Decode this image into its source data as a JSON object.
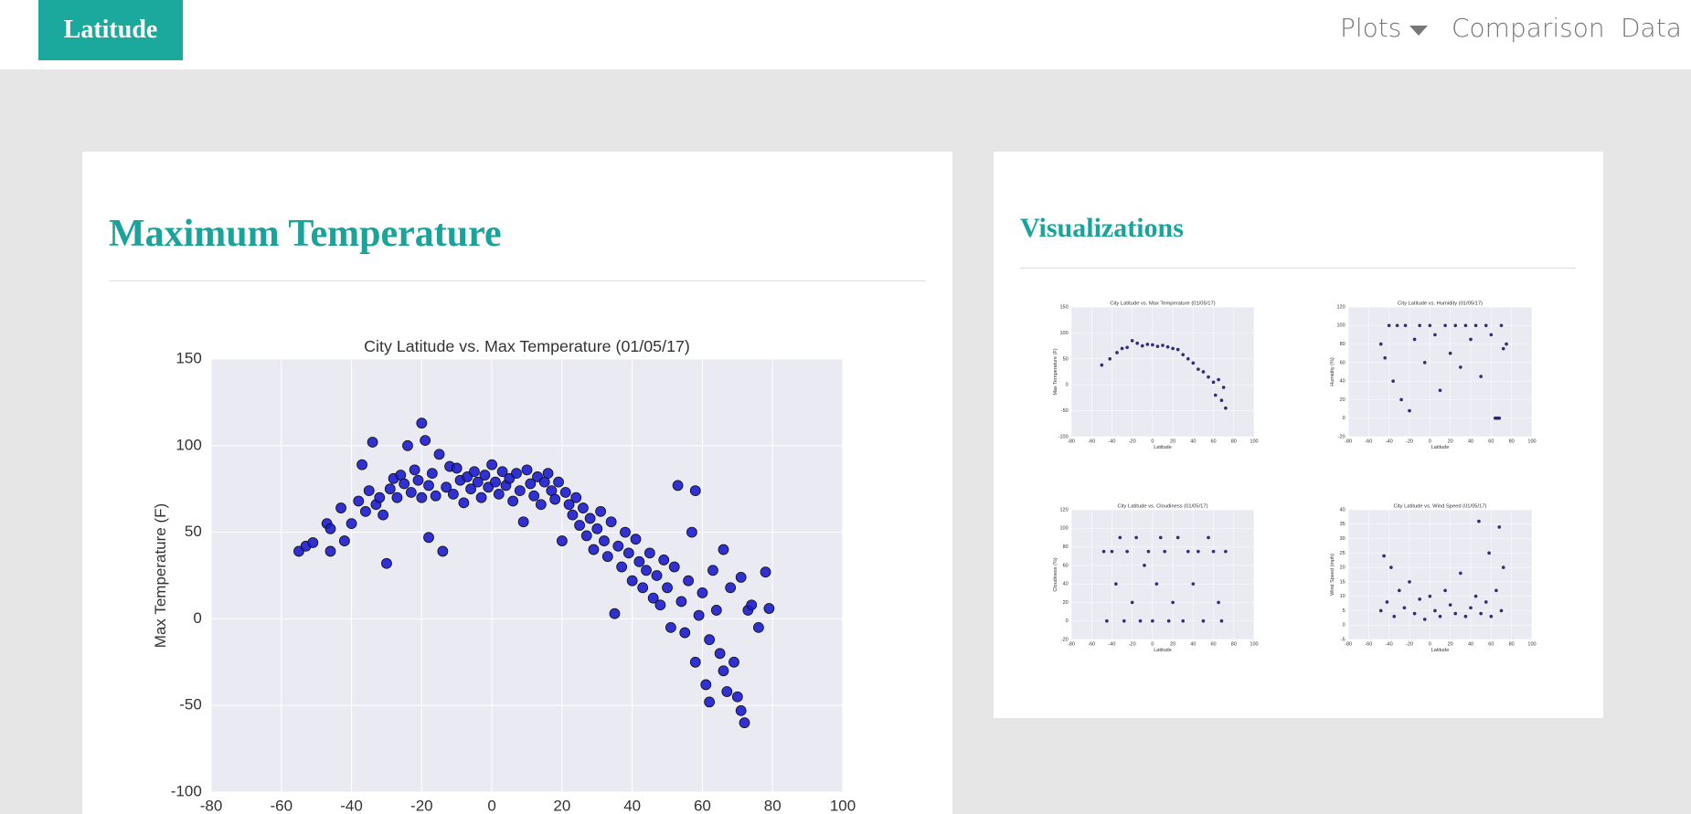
{
  "nav": {
    "brand": "Latitude",
    "items": [
      "Plots",
      "Comparison",
      "Data"
    ]
  },
  "main": {
    "title": "Maximum Temperature"
  },
  "sidebar": {
    "title": "Visualizations"
  },
  "chart_data": [
    {
      "type": "scatter",
      "title": "City Latitude vs. Max Temperature (01/05/17)",
      "y_label": "Max Temperature (F)",
      "color": "#1c1ccf",
      "grid": true,
      "xlim": [
        -80,
        100
      ],
      "xticks": [
        -80,
        -60,
        -40,
        -20,
        0,
        20,
        40,
        60,
        80,
        100
      ],
      "ylim": [
        -100,
        150
      ],
      "yticks": [
        -100,
        -50,
        0,
        50,
        100,
        150
      ],
      "x": [
        -55,
        -53,
        -51,
        -47,
        -46,
        -46,
        -43,
        -42,
        -40,
        -38,
        -37,
        -36,
        -35,
        -34,
        -33,
        -32,
        -31,
        -30,
        -29,
        -28,
        -27,
        -26,
        -25,
        -24,
        -23,
        -22,
        -21,
        -20,
        -20,
        -19,
        -18,
        -18,
        -17,
        -16,
        -15,
        -14,
        -13,
        -12,
        -11,
        -10,
        -9,
        -8,
        -7,
        -6,
        -5,
        -4,
        -3,
        -2,
        -1,
        0,
        1,
        2,
        3,
        4,
        5,
        6,
        7,
        8,
        9,
        10,
        11,
        12,
        13,
        14,
        15,
        16,
        17,
        18,
        19,
        20,
        21,
        22,
        23,
        24,
        25,
        26,
        27,
        28,
        29,
        30,
        31,
        32,
        33,
        34,
        35,
        36,
        37,
        38,
        39,
        40,
        41,
        42,
        43,
        44,
        45,
        46,
        47,
        48,
        49,
        50,
        51,
        52,
        53,
        54,
        55,
        56,
        57,
        58,
        59,
        60,
        61,
        62,
        63,
        64,
        65,
        66,
        67,
        68,
        69,
        70,
        71,
        72,
        73,
        74,
        76,
        78,
        79,
        71,
        66,
        62,
        58
      ],
      "values": [
        39,
        42,
        44,
        55,
        52,
        39,
        64,
        45,
        55,
        68,
        89,
        62,
        74,
        102,
        66,
        70,
        60,
        32,
        75,
        81,
        70,
        83,
        78,
        100,
        73,
        86,
        80,
        113,
        70,
        103,
        47,
        77,
        84,
        71,
        95,
        39,
        76,
        88,
        72,
        87,
        80,
        67,
        82,
        75,
        85,
        79,
        70,
        83,
        76,
        89,
        79,
        72,
        85,
        77,
        81,
        68,
        84,
        74,
        56,
        86,
        78,
        71,
        82,
        66,
        79,
        84,
        74,
        69,
        79,
        45,
        73,
        66,
        60,
        70,
        54,
        64,
        48,
        58,
        40,
        52,
        62,
        45,
        36,
        56,
        3,
        42,
        30,
        50,
        38,
        22,
        46,
        33,
        18,
        28,
        38,
        12,
        25,
        8,
        34,
        18,
        -5,
        30,
        77,
        10,
        -8,
        22,
        50,
        74,
        2,
        15,
        -38,
        -48,
        28,
        5,
        -20,
        40,
        -42,
        18,
        -25,
        -45,
        24,
        -60,
        5,
        8,
        -5,
        27,
        6,
        -53,
        -30,
        -12,
        -25
      ]
    },
    {
      "type": "scatter",
      "title": "City Latitude vs. Max Temperature (01/05/17)",
      "x_label": "Latitude",
      "y_label": "Max Temperature (F)",
      "color": "#1b1b7a",
      "grid": true,
      "xlim": [
        -80,
        100
      ],
      "xticks": [
        -80,
        -60,
        -40,
        -20,
        0,
        20,
        40,
        60,
        80,
        100
      ],
      "ylim": [
        -100,
        150
      ],
      "yticks": [
        -100,
        -50,
        0,
        50,
        100,
        150
      ],
      "x": [
        -50,
        -42,
        -35,
        -30,
        -25,
        -20,
        -15,
        -10,
        -5,
        0,
        5,
        10,
        15,
        20,
        25,
        30,
        35,
        40,
        45,
        50,
        55,
        60,
        62,
        65,
        68,
        70,
        72
      ],
      "values": [
        38,
        50,
        62,
        70,
        72,
        85,
        80,
        75,
        78,
        77,
        74,
        76,
        73,
        70,
        68,
        58,
        50,
        42,
        30,
        25,
        15,
        5,
        -20,
        10,
        -30,
        -5,
        -45
      ]
    },
    {
      "type": "scatter",
      "title": "City Latitude vs. Humidity (01/05/17)",
      "x_label": "Latitude",
      "y_label": "Humidity (%)",
      "color": "#1b1b7a",
      "grid": true,
      "xlim": [
        -80,
        100
      ],
      "xticks": [
        -80,
        -60,
        -40,
        -20,
        0,
        20,
        40,
        60,
        80,
        100
      ],
      "ylim": [
        -20,
        120
      ],
      "yticks": [
        -20,
        0,
        20,
        40,
        60,
        80,
        100,
        120
      ],
      "x": [
        -48,
        -44,
        -40,
        -36,
        -32,
        -28,
        -24,
        -20,
        -15,
        -10,
        -5,
        0,
        5,
        10,
        15,
        20,
        25,
        30,
        35,
        40,
        45,
        50,
        55,
        60,
        64,
        66,
        68,
        70,
        72,
        75
      ],
      "values": [
        80,
        65,
        100,
        40,
        100,
        20,
        100,
        8,
        85,
        100,
        60,
        100,
        90,
        30,
        100,
        70,
        100,
        55,
        100,
        85,
        100,
        45,
        100,
        90,
        0,
        0,
        0,
        100,
        75,
        80
      ]
    },
    {
      "type": "scatter",
      "title": "City Latitude vs. Cloudiness (01/05/17)",
      "x_label": "Latitude",
      "y_label": "Cloudiness (%)",
      "color": "#1b1b7a",
      "grid": true,
      "xlim": [
        -80,
        100
      ],
      "xticks": [
        -80,
        -60,
        -40,
        -20,
        0,
        20,
        40,
        60,
        80,
        100
      ],
      "ylim": [
        -20,
        120
      ],
      "yticks": [
        -20,
        0,
        20,
        40,
        60,
        80,
        100,
        120
      ],
      "x": [
        -48,
        -45,
        -40,
        -36,
        -32,
        -28,
        -25,
        -20,
        -16,
        -12,
        -8,
        -4,
        0,
        4,
        8,
        12,
        16,
        20,
        25,
        30,
        35,
        40,
        45,
        50,
        55,
        60,
        65,
        68,
        72
      ],
      "values": [
        75,
        0,
        75,
        40,
        90,
        0,
        75,
        20,
        90,
        0,
        60,
        75,
        0,
        40,
        90,
        75,
        0,
        20,
        90,
        0,
        75,
        40,
        75,
        0,
        90,
        75,
        20,
        0,
        75
      ]
    },
    {
      "type": "scatter",
      "title": "City Latitude vs. Wind Speed (01/05/17)",
      "x_label": "Latitude",
      "y_label": "Wind Speed (mph)",
      "color": "#1b1b7a",
      "grid": true,
      "xlim": [
        -80,
        100
      ],
      "xticks": [
        -80,
        -60,
        -40,
        -20,
        0,
        20,
        40,
        60,
        80,
        100
      ],
      "ylim": [
        -5,
        40
      ],
      "yticks": [
        -5,
        0,
        5,
        10,
        15,
        20,
        25,
        30,
        35,
        40
      ],
      "x": [
        -48,
        -45,
        -42,
        -38,
        -35,
        -30,
        -25,
        -20,
        -15,
        -10,
        -5,
        0,
        5,
        10,
        15,
        20,
        25,
        30,
        35,
        40,
        45,
        48,
        50,
        55,
        58,
        60,
        65,
        68,
        70,
        72
      ],
      "values": [
        5,
        24,
        8,
        20,
        3,
        12,
        6,
        15,
        4,
        9,
        2,
        10,
        5,
        3,
        12,
        7,
        4,
        18,
        3,
        6,
        10,
        36,
        4,
        8,
        25,
        3,
        12,
        34,
        5,
        20
      ]
    }
  ]
}
